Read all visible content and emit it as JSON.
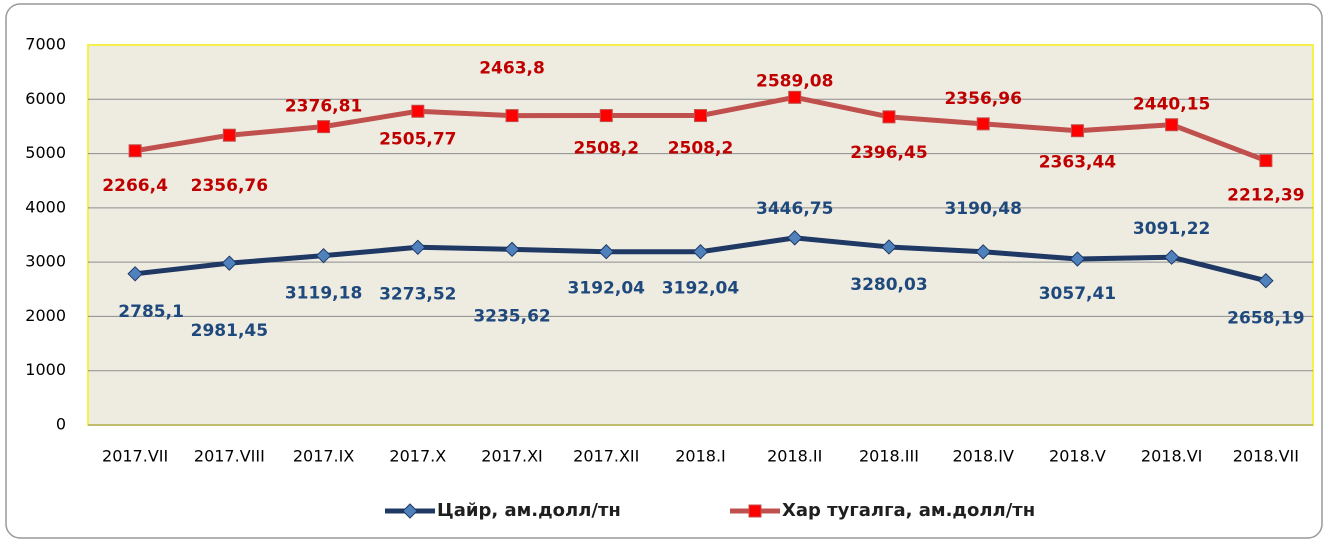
{
  "chart_data": {
    "type": "line",
    "stacked": true,
    "categories": [
      "2017.VII",
      "2017.VIII",
      "2017.IX",
      "2017.X",
      "2017.XI",
      "2017.XII",
      "2018.I",
      "2018.II",
      "2018.III",
      "2018.IV",
      "2018.V",
      "2018.VI",
      "2018.VII"
    ],
    "series": [
      {
        "name": "Цайр, ам.долл/тн",
        "color": "#1f3864",
        "marker": "diamond",
        "marker_color": "#4f81bd",
        "label_color": "#1f497d",
        "values": [
          2785.1,
          2981.45,
          3119.18,
          3273.52,
          3235.62,
          3192.04,
          3192.04,
          3446.75,
          3280.03,
          3190.48,
          3057.41,
          3091.22,
          2658.19
        ],
        "value_labels": [
          "2785,1",
          "2981,45",
          "3119,18",
          "3273,52",
          "3235,62",
          "3192,04",
          "3192,04",
          "3446,75",
          "3280,03",
          "3190,48",
          "3057,41",
          "3091,22",
          "2658,19"
        ]
      },
      {
        "name": "Хар тугалга, ам.долл/тн",
        "color": "#c0504d",
        "marker": "square",
        "marker_color": "#ff0000",
        "label_color": "#c00000",
        "values": [
          2266.4,
          2356.76,
          2376.81,
          2505.77,
          2463.8,
          2508.2,
          2508.2,
          2589.08,
          2396.45,
          2356.96,
          2363.44,
          2440.15,
          2212.39
        ],
        "value_labels": [
          "2266,4",
          "2356,76",
          "2376,81",
          "2505,77",
          "2463,8",
          "2508,2",
          "2508,2",
          "2589,08",
          "2396,45",
          "2356,96",
          "2363,44",
          "2440,15",
          "2212,39"
        ]
      }
    ],
    "ylim": [
      0,
      7000
    ],
    "yticks": [
      0,
      1000,
      2000,
      3000,
      4000,
      5000,
      6000,
      7000
    ],
    "grid": true,
    "legend": "bottom"
  }
}
